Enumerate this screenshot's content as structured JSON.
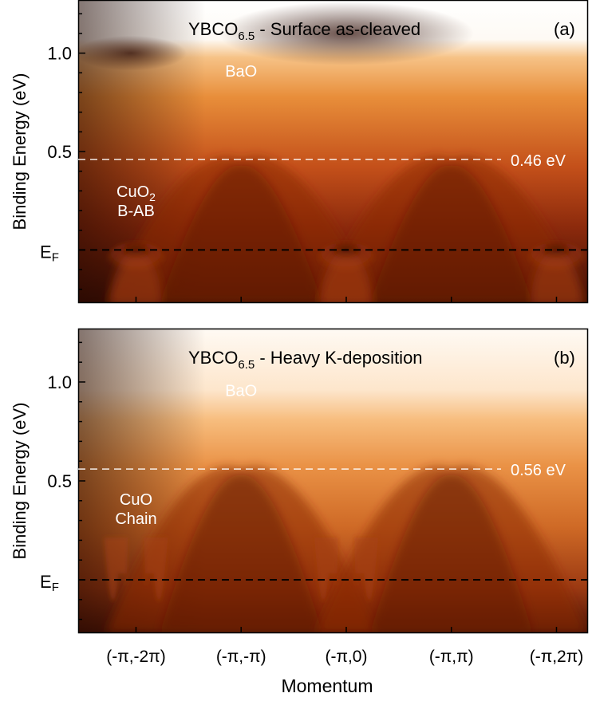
{
  "chart_data": [
    {
      "type": "heatmap",
      "panel_label": "(a)",
      "title_main": "YBCO",
      "title_sub": "6.5",
      "title_rest": " - Surface as-cleaved",
      "title": "YBCO6.5 - Surface as-cleaved",
      "ylabel": "Binding Energy (eV)",
      "ylim": [
        1.27,
        -0.27
      ],
      "fermi_label": "E",
      "fermi_sub": "F",
      "yticks": [
        {
          "value": 0.5,
          "label": "0.5"
        },
        {
          "value": 1.0,
          "label": "1.0"
        }
      ],
      "reference_line": {
        "value": 0.46,
        "label": "0.46 eV"
      },
      "annotations": [
        {
          "key": "cuo2",
          "lines": [
            "CuO",
            "B-AB"
          ],
          "subscript": "2",
          "x": -2.0,
          "y": 0.27
        },
        {
          "key": "bao",
          "lines": [
            "BaO"
          ],
          "x": -1.0,
          "y": 0.88
        }
      ],
      "bands": [
        {
          "name": "BaO",
          "center": -1.0,
          "top": 0.46
        },
        {
          "name": "BaO",
          "center": 1.0,
          "top": 0.46
        },
        {
          "name": "CuO2 B-AB",
          "center": -2.0,
          "top": 0.0
        },
        {
          "name": "CuO2 B-AB",
          "center": 0.0,
          "top": 0.0
        },
        {
          "name": "CuO2 B-AB",
          "center": 2.0,
          "top": 0.0
        }
      ]
    },
    {
      "type": "heatmap",
      "panel_label": "(b)",
      "title_main": "YBCO",
      "title_sub": "6.5",
      "title_rest": " - Heavy K-deposition",
      "title": "YBCO6.5 - Heavy K-deposition",
      "ylabel": "Binding Energy (eV)",
      "ylim": [
        1.27,
        -0.27
      ],
      "fermi_label": "E",
      "fermi_sub": "F",
      "yticks": [
        {
          "value": 0.5,
          "label": "0.5"
        },
        {
          "value": 1.0,
          "label": "1.0"
        }
      ],
      "reference_line": {
        "value": 0.56,
        "label": "0.56 eV"
      },
      "annotations": [
        {
          "key": "cuo",
          "lines": [
            "CuO",
            "Chain"
          ],
          "x": -2.0,
          "y": 0.38
        },
        {
          "key": "bao",
          "lines": [
            "BaO"
          ],
          "x": -1.0,
          "y": 0.93
        }
      ],
      "bands": [
        {
          "name": "BaO",
          "center": -1.0,
          "top": 0.56
        },
        {
          "name": "BaO",
          "center": 1.0,
          "top": 0.56
        },
        {
          "name": "CuO Chain",
          "center": -2.0,
          "top": 0.0
        },
        {
          "name": "CuO Chain",
          "center": 0.0,
          "top": 0.0
        }
      ]
    }
  ],
  "xaxis": {
    "label": "Momentum",
    "xlim": [
      -2.55,
      2.3
    ],
    "ticks": [
      {
        "value": -2,
        "label": "(-π,-2π)"
      },
      {
        "value": -1,
        "label": "(-π,-π)"
      },
      {
        "value": 0,
        "label": "(-π,0)"
      },
      {
        "value": 1,
        "label": "(-π,π)"
      },
      {
        "value": 2,
        "label": "(-π,2π)"
      }
    ]
  }
}
